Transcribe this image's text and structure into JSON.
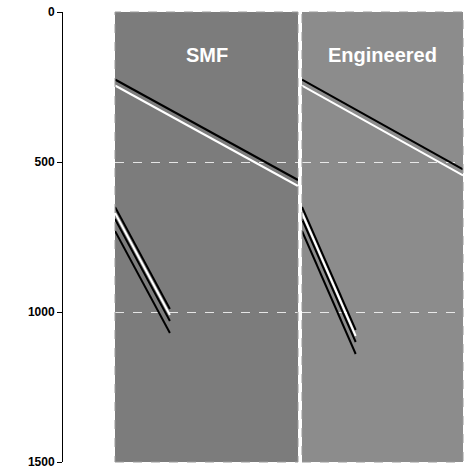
{
  "chart_data": [
    {
      "type": "line",
      "title": "SMF",
      "xlim": [
        0,
        100
      ],
      "ylim": [
        1500,
        0
      ],
      "yticks": [
        0,
        500,
        1000,
        1500
      ],
      "grid": true,
      "tick_labels": "y",
      "series": [
        {
          "color": "#000000",
          "x": [
            0,
            100
          ],
          "values": [
            225,
            560
          ]
        },
        {
          "color": "#ffffff",
          "x": [
            0,
            100
          ],
          "values": [
            245,
            580
          ]
        },
        {
          "color": "#000000",
          "x": [
            0,
            30
          ],
          "values": [
            650,
            990
          ]
        },
        {
          "color": "#ffffff",
          "x": [
            0,
            30
          ],
          "values": [
            670,
            1010
          ]
        },
        {
          "color": "#000000",
          "x": [
            0,
            30
          ],
          "values": [
            690,
            1030
          ]
        },
        {
          "color": "#000000",
          "x": [
            0,
            30
          ],
          "values": [
            730,
            1070
          ]
        }
      ]
    },
    {
      "type": "line",
      "title": "Engineered",
      "xlim": [
        0,
        90
      ],
      "ylim": [
        1500,
        0
      ],
      "yticks": [
        0,
        500,
        1000,
        1500
      ],
      "grid": true,
      "tick_labels": false,
      "series": [
        {
          "color": "#000000",
          "x": [
            0,
            90
          ],
          "values": [
            225,
            525
          ]
        },
        {
          "color": "#ffffff",
          "x": [
            0,
            90
          ],
          "values": [
            245,
            545
          ]
        },
        {
          "color": "#000000",
          "x": [
            0,
            30
          ],
          "values": [
            650,
            1060
          ]
        },
        {
          "color": "#ffffff",
          "x": [
            0,
            30
          ],
          "values": [
            670,
            1080
          ]
        },
        {
          "color": "#000000",
          "x": [
            0,
            30
          ],
          "values": [
            690,
            1100
          ]
        },
        {
          "color": "#000000",
          "x": [
            0,
            30
          ],
          "values": [
            730,
            1140
          ]
        }
      ]
    }
  ]
}
